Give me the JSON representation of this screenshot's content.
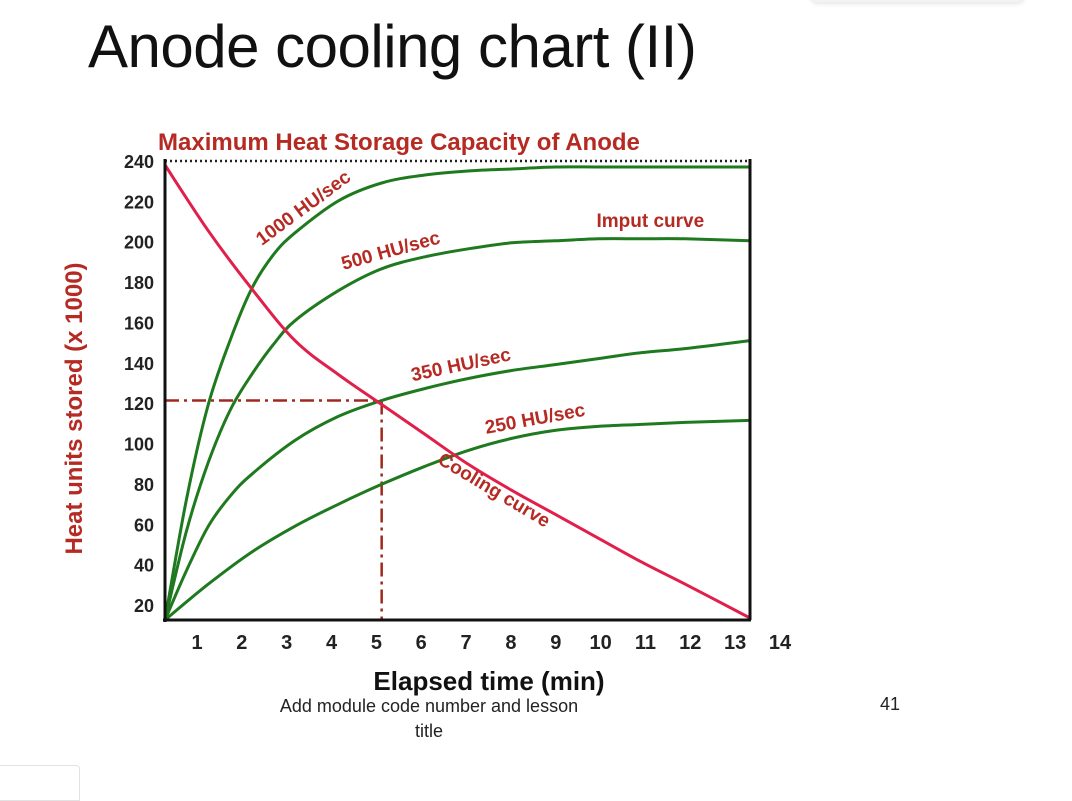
{
  "slide": {
    "title": "Anode cooling chart (II)",
    "footer_text": "Add module code number and lesson title",
    "page_number": "41"
  },
  "colors": {
    "green": "#1f7a1f",
    "red": "#e0204a",
    "title_red": "#b52a22",
    "axis": "#111111"
  },
  "chart_data": {
    "type": "line",
    "title": "Maximum Heat Storage Capacity of Anode",
    "xlabel": "Elapsed time (min)",
    "ylabel": "Heat units stored (x 1000)",
    "xlim": [
      0,
      14
    ],
    "ylim": [
      10,
      240
    ],
    "x_ticks": [
      "1",
      "2",
      "3",
      "4",
      "5",
      "6",
      "7",
      "8",
      "9",
      "10",
      "11",
      "12",
      "13",
      "14"
    ],
    "y_ticks": [
      "20",
      "40",
      "60",
      "80",
      "100",
      "120",
      "140",
      "160",
      "180",
      "200",
      "220",
      "240"
    ],
    "series": [
      {
        "name": "1000 HU/sec",
        "x": [
          0,
          0.5,
          1,
          1.5,
          2,
          2.5,
          3,
          4,
          5,
          6,
          7,
          8,
          9,
          10,
          11,
          12,
          13.5
        ],
        "y": [
          10,
          71,
          118,
          150,
          176,
          193,
          204,
          220,
          229,
          233,
          235,
          236,
          237,
          237,
          237,
          237,
          237
        ]
      },
      {
        "name": "500 HU/sec",
        "x": [
          0,
          0.5,
          1,
          1.5,
          2,
          2.5,
          3,
          4,
          5,
          6,
          7,
          8,
          9,
          10,
          11,
          12,
          13.5
        ],
        "y": [
          10,
          55,
          89,
          115,
          133,
          148,
          160,
          175,
          186,
          192,
          196,
          199,
          200,
          201,
          201,
          201,
          200
        ]
      },
      {
        "name": "350 HU/sec",
        "x": [
          0,
          0.5,
          1,
          1.5,
          2,
          3,
          4,
          5,
          6,
          7,
          8,
          9,
          10,
          11,
          12,
          13.5
        ],
        "y": [
          10,
          35,
          57,
          72,
          83,
          100,
          112,
          120,
          126,
          131,
          135,
          138,
          141,
          144,
          146,
          150
        ]
      },
      {
        "name": "250 HU/sec",
        "x": [
          0,
          1,
          2,
          3,
          4,
          5,
          6,
          7,
          8,
          9,
          10,
          11,
          12,
          13.5
        ],
        "y": [
          10,
          28,
          44,
          57,
          68,
          78,
          87,
          95,
          101,
          105,
          107,
          108,
          109,
          110
        ]
      },
      {
        "name": "Cooling curve",
        "x": [
          0,
          1,
          2,
          3,
          4,
          5,
          6,
          7,
          8,
          9,
          10,
          11,
          12,
          13.5
        ],
        "y": [
          238,
          205,
          176,
          150,
          133,
          118,
          103,
          88,
          75,
          63,
          51,
          39,
          28,
          11
        ]
      }
    ],
    "reference_lines": {
      "max_capacity_y": 240,
      "marker_x": 5,
      "marker_y": 120
    },
    "annotations": [
      {
        "text": "1000 HU/sec",
        "series": "1000 HU/sec",
        "at_x": 3.4,
        "offset": -9
      },
      {
        "text": "500 HU/sec",
        "series": "500 HU/sec",
        "at_x": 5.3,
        "offset": -9
      },
      {
        "text": "Imput curve",
        "series": "500 HU/sec",
        "at_x": 11.2,
        "offset": -12,
        "flat": true
      },
      {
        "text": "350 HU/sec",
        "series": "350 HU/sec",
        "at_x": 6.9,
        "offset": -9
      },
      {
        "text": "250 HU/sec",
        "series": "250 HU/sec",
        "at_x": 8.6,
        "offset": -9
      },
      {
        "text": "Cooling curve",
        "series": "Cooling curve",
        "at_x": 7.7,
        "offset": 15
      }
    ]
  }
}
